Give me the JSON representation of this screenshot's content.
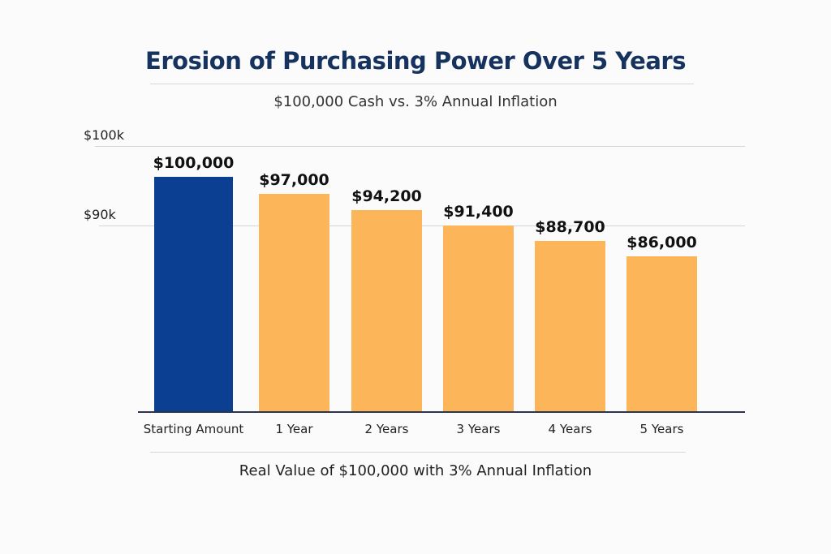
{
  "chart_data": {
    "type": "bar",
    "title": "Erosion of Purchasing Power Over 5 Years",
    "subtitle": "$100,000 Cash vs. 3% Annual Inflation",
    "xlabel": "Real Value of $100,000 with 3% Annual Inflation",
    "ylabel": "",
    "yticks": [
      "$100k",
      "$90k"
    ],
    "categories": [
      "Starting Amount",
      "1 Year",
      "2 Years",
      "3 Years",
      "4 Years",
      "5 Years"
    ],
    "values": [
      100000,
      97000,
      94200,
      91400,
      88700,
      86000
    ],
    "data_labels": [
      "$100,000",
      "$97,000",
      "$94,200",
      "$91,400",
      "$88,700",
      "$86,000"
    ],
    "colors": [
      "#0b3f91",
      "#fdb55a",
      "#fdb55a",
      "#fdb55a",
      "#fdb55a",
      "#fdb55a"
    ],
    "grid": true,
    "legend": "none"
  }
}
